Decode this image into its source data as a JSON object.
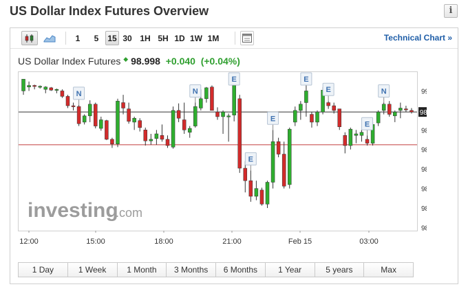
{
  "page": {
    "title": "US Dollar Index Futures Overview",
    "info_label": "i"
  },
  "toolbar": {
    "intervals": [
      "1",
      "5",
      "15",
      "30",
      "1H",
      "5H",
      "1D",
      "1W",
      "1M"
    ],
    "active_interval": "15",
    "technical_chart_label": "Technical Chart »"
  },
  "instrument": {
    "name": "US Dollar Index Futures",
    "price": "98.998",
    "change": "+0.040",
    "change_pct": "(+0.04%)"
  },
  "watermark": {
    "brand": "investing",
    "suffix": ".com"
  },
  "ranges": [
    "1 Day",
    "1 Week",
    "1 Month",
    "3 Months",
    "6 Months",
    "1 Year",
    "5 years",
    "Max"
  ],
  "colors": {
    "up": "#2fae2f",
    "down": "#d22b2b",
    "change_positive": "#2f9f2f",
    "link": "#1f5ea8",
    "reference_line": "#c23b3b"
  },
  "chart_data": {
    "type": "candlestick",
    "yticks": [
      "99.025",
      "99.000",
      "98.975",
      "98.950",
      "98.925",
      "98.900",
      "98.875",
      "98.850"
    ],
    "ylim": [
      98.846,
      99.05
    ],
    "xticks": [
      "12:00",
      "15:00",
      "18:00",
      "21:00",
      "Feb 15",
      "03:00"
    ],
    "current_price_label": "98.998",
    "current_price": 98.998,
    "reference_price": 98.956,
    "candles": [
      [
        99.025,
        99.04,
        99.02,
        99.04
      ],
      [
        99.03,
        99.037,
        99.025,
        99.032
      ],
      [
        99.032,
        99.033,
        99.027,
        99.031
      ],
      [
        99.03,
        99.032,
        99.028,
        99.031
      ],
      [
        99.027,
        99.031,
        99.022,
        99.03
      ],
      [
        99.029,
        99.03,
        99.025,
        99.026
      ],
      [
        99.026,
        99.028,
        99.022,
        99.027
      ],
      [
        99.025,
        99.027,
        99.016,
        99.018
      ],
      [
        99.018,
        99.02,
        99.003,
        99.006
      ],
      [
        99.006,
        99.01,
        99.0,
        99.005
      ],
      [
        99.005,
        99.007,
        98.98,
        98.983
      ],
      [
        98.985,
        98.995,
        98.982,
        98.993
      ],
      [
        98.993,
        99.013,
        98.985,
        99.008
      ],
      [
        99.008,
        99.01,
        98.977,
        98.98
      ],
      [
        98.977,
        98.992,
        98.974,
        98.988
      ],
      [
        98.987,
        98.988,
        98.962,
        98.963
      ],
      [
        98.963,
        98.965,
        98.952,
        98.957
      ],
      [
        98.957,
        99.015,
        98.953,
        99.012
      ],
      [
        99.01,
        99.02,
        98.995,
        99.003
      ],
      [
        99.002,
        99.01,
        98.983,
        98.986
      ],
      [
        98.985,
        98.992,
        98.975,
        98.99
      ],
      [
        98.987,
        98.99,
        98.973,
        98.978
      ],
      [
        98.975,
        98.978,
        98.955,
        98.961
      ],
      [
        98.961,
        98.97,
        98.956,
        98.963
      ],
      [
        98.964,
        98.975,
        98.956,
        98.97
      ],
      [
        98.968,
        98.982,
        98.96,
        98.963
      ],
      [
        98.963,
        98.968,
        98.952,
        98.955
      ],
      [
        98.953,
        99.005,
        98.951,
        99.0
      ],
      [
        99.0,
        99.009,
        98.985,
        98.99
      ],
      [
        98.988,
        99.01,
        98.97,
        98.975
      ],
      [
        98.972,
        98.98,
        98.965,
        98.977
      ],
      [
        98.98,
        99.01,
        98.978,
        99.005
      ],
      [
        99.003,
        99.027,
        99.0,
        99.015
      ],
      [
        99.015,
        99.03,
        99.01,
        99.029
      ],
      [
        99.03,
        99.032,
        99.0,
        99.0
      ],
      [
        98.998,
        99.004,
        98.988,
        98.992
      ],
      [
        98.992,
        99.0,
        98.97,
        98.998
      ],
      [
        98.992,
        98.996,
        98.96,
        98.993
      ],
      [
        98.994,
        99.034,
        98.986,
        99.032
      ],
      [
        99.015,
        99.02,
        98.92,
        98.926
      ],
      [
        98.926,
        98.935,
        98.895,
        98.91
      ],
      [
        98.91,
        98.923,
        98.883,
        98.89
      ],
      [
        98.89,
        98.91,
        98.885,
        98.9
      ],
      [
        98.898,
        98.901,
        98.878,
        98.88
      ],
      [
        98.88,
        98.91,
        98.875,
        98.908
      ],
      [
        98.908,
        98.975,
        98.9,
        98.96
      ],
      [
        98.96,
        98.965,
        98.94,
        98.944
      ],
      [
        98.944,
        98.96,
        98.9,
        98.903
      ],
      [
        98.905,
        98.978,
        98.9,
        98.976
      ],
      [
        98.985,
        99.005,
        98.98,
        99.0
      ],
      [
        99.0,
        99.012,
        98.988,
        99.008
      ],
      [
        99.01,
        99.035,
        98.992,
        99.025
      ],
      [
        98.995,
        98.998,
        98.978,
        98.985
      ],
      [
        98.985,
        99.0,
        98.98,
        98.998
      ],
      [
        98.998,
        99.03,
        98.995,
        99.026
      ],
      [
        99.01,
        99.012,
        99.002,
        99.006
      ],
      [
        99.006,
        99.01,
        98.996,
        99.0
      ],
      [
        99.002,
        99.002,
        98.975,
        98.979
      ],
      [
        98.968,
        98.972,
        98.945,
        98.955
      ],
      [
        98.955,
        98.978,
        98.95,
        98.976
      ],
      [
        98.968,
        98.975,
        98.958,
        98.97
      ],
      [
        98.968,
        98.975,
        98.96,
        98.972
      ],
      [
        98.963,
        98.968,
        98.955,
        98.958
      ],
      [
        98.958,
        98.985,
        98.955,
        98.982
      ],
      [
        98.984,
        99.0,
        98.98,
        98.998
      ],
      [
        99.0,
        99.01,
        98.995,
        99.008
      ],
      [
        99.008,
        99.012,
        98.992,
        98.995
      ],
      [
        98.993,
        99.0,
        98.985,
        98.998
      ],
      [
        99.0,
        99.01,
        98.99,
        99.003
      ],
      [
        99.002,
        99.006,
        98.998,
        99.001
      ],
      [
        99.0,
        99.003,
        98.996,
        98.998
      ]
    ],
    "events": [
      {
        "label": "N",
        "index": 10
      },
      {
        "label": "N",
        "index": 31
      },
      {
        "label": "E",
        "index": 38
      },
      {
        "label": "E",
        "index": 41
      },
      {
        "label": "E",
        "index": 45
      },
      {
        "label": "E",
        "index": 51
      },
      {
        "label": "E",
        "index": 55
      },
      {
        "label": "E",
        "index": 62
      },
      {
        "label": "N",
        "index": 65
      }
    ]
  }
}
